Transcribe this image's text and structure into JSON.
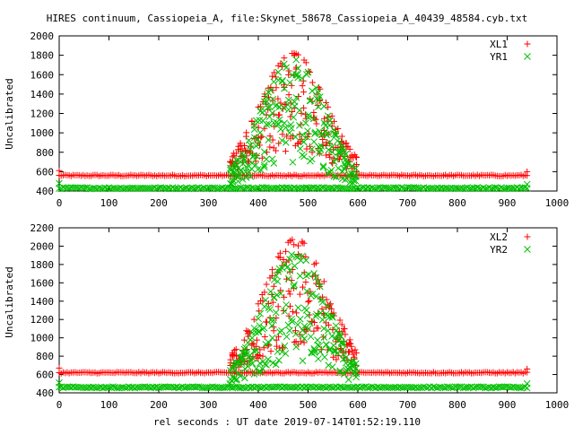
{
  "title": "HIRES continuum, Cassiopeia_A, file:Skynet_58678_Cassiopeia_A_40439_48584.cyb.txt",
  "xlabel": "rel seconds : UT date 2019-07-14T01:52:19.110",
  "colors": {
    "series_x": "#ff0000",
    "series_y": "#00c000"
  },
  "chart_data": [
    {
      "type": "scatter",
      "ylabel": "Uncalibrated",
      "xlim": [
        0,
        1000
      ],
      "ylim": [
        400,
        2000
      ],
      "x_ticks": [
        0,
        100,
        200,
        300,
        400,
        500,
        600,
        700,
        800,
        900,
        1000
      ],
      "y_ticks": [
        400,
        600,
        800,
        1000,
        1200,
        1400,
        1600,
        1800,
        2000
      ],
      "x_tick_labels": [
        "0",
        "100",
        "200",
        "300",
        "400",
        "500",
        "600",
        "700",
        "800",
        "900",
        "1000"
      ],
      "y_tick_labels": [
        "400",
        "600",
        "800",
        "1000",
        "1200",
        "1400",
        "1600",
        "1800",
        "2000"
      ],
      "legend_position": "top-right",
      "series": [
        {
          "name": "XL1",
          "marker": "plus",
          "color": "#ff0000",
          "baseline": 560,
          "peak": 1820,
          "peak_x": 470,
          "source_width": 65,
          "x_range": [
            0,
            940
          ]
        },
        {
          "name": "YR1",
          "marker": "cross",
          "color": "#00c000",
          "baseline": 430,
          "peak": 1760,
          "peak_x": 470,
          "source_width": 65,
          "x_range": [
            0,
            940
          ]
        }
      ]
    },
    {
      "type": "scatter",
      "ylabel": "Uncalibrated",
      "xlim": [
        0,
        1000
      ],
      "ylim": [
        400,
        2200
      ],
      "x_ticks": [
        0,
        100,
        200,
        300,
        400,
        500,
        600,
        700,
        800,
        900,
        1000
      ],
      "y_ticks": [
        400,
        600,
        800,
        1000,
        1200,
        1400,
        1600,
        1800,
        2000,
        2200
      ],
      "x_tick_labels": [
        "0",
        "100",
        "200",
        "300",
        "400",
        "500",
        "600",
        "700",
        "800",
        "900",
        "1000"
      ],
      "y_tick_labels": [
        "400",
        "600",
        "800",
        "1000",
        "1200",
        "1400",
        "1600",
        "1800",
        "2000",
        "2200"
      ],
      "legend_position": "top-right",
      "series": [
        {
          "name": "XL2",
          "marker": "plus",
          "color": "#ff0000",
          "baseline": 620,
          "peak": 2080,
          "peak_x": 475,
          "source_width": 65,
          "x_range": [
            0,
            940
          ]
        },
        {
          "name": "YR2",
          "marker": "cross",
          "color": "#00c000",
          "baseline": 460,
          "peak": 1920,
          "peak_x": 475,
          "source_width": 65,
          "x_range": [
            0,
            940
          ]
        }
      ]
    }
  ]
}
